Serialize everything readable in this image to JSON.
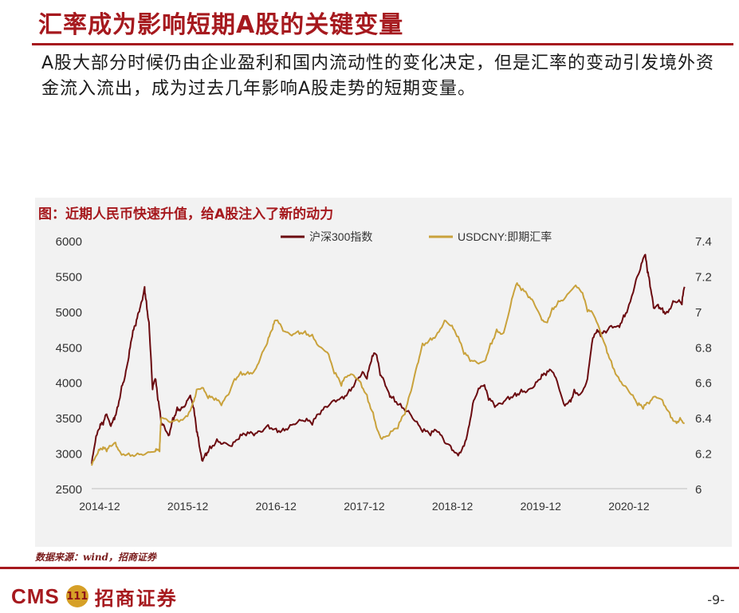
{
  "page": {
    "title": "汇率成为影响短期A股的关键变量",
    "intro": "A股大部分时候仍由企业盈利和国内流动性的变化决定，但是汇率的变动引发境外资金流入流出，成为过去几年影响A股走势的短期变量。",
    "source": "数据来源：wind，招商证券",
    "page_number": "-9-"
  },
  "logo": {
    "cms_text": "CMS",
    "badge_text": "111",
    "cn_text": "招商证券"
  },
  "colors": {
    "brand_red": "#a6191e",
    "series_csi300": "#6b0b10",
    "series_usdcny": "#c9a23c",
    "chart_bg": "#f2f2f2"
  },
  "chart_data": {
    "type": "line",
    "title": "图：近期人民币快速升值，给A股注入了新的动力",
    "categories": [
      "2014-12",
      "2015-12",
      "2016-12",
      "2017-12",
      "2018-12",
      "2019-12",
      "2020-12"
    ],
    "x_range": [
      2014.83,
      2021.58
    ],
    "y_left": {
      "range": [
        2500,
        6000
      ],
      "ticks": [
        2500,
        3000,
        3500,
        4000,
        4500,
        5000,
        5500,
        6000
      ]
    },
    "y_right": {
      "range": [
        6,
        7.4
      ],
      "ticks": [
        "6",
        "6.2",
        "6.4",
        "6.6",
        "6.8",
        "7",
        "7.2",
        "7.4"
      ]
    },
    "legend_position": "top-center",
    "series": [
      {
        "name": "沪深300指数",
        "axis": "left",
        "points": [
          [
            2014.83,
            2850
          ],
          [
            2014.87,
            3150
          ],
          [
            2014.92,
            3350
          ],
          [
            2014.96,
            3400
          ],
          [
            2015.0,
            3550
          ],
          [
            2015.04,
            3400
          ],
          [
            2015.08,
            3500
          ],
          [
            2015.12,
            3650
          ],
          [
            2015.17,
            3950
          ],
          [
            2015.21,
            4100
          ],
          [
            2015.25,
            4350
          ],
          [
            2015.29,
            4650
          ],
          [
            2015.33,
            4800
          ],
          [
            2015.37,
            5000
          ],
          [
            2015.4,
            5150
          ],
          [
            2015.43,
            5350
          ],
          [
            2015.45,
            5150
          ],
          [
            2015.48,
            4850
          ],
          [
            2015.5,
            4400
          ],
          [
            2015.52,
            3900
          ],
          [
            2015.55,
            4050
          ],
          [
            2015.58,
            3750
          ],
          [
            2015.62,
            3400
          ],
          [
            2015.66,
            3350
          ],
          [
            2015.7,
            3250
          ],
          [
            2015.75,
            3500
          ],
          [
            2015.8,
            3650
          ],
          [
            2015.85,
            3650
          ],
          [
            2015.9,
            3700
          ],
          [
            2015.94,
            3800
          ],
          [
            2015.98,
            3650
          ],
          [
            2016.02,
            3300
          ],
          [
            2016.05,
            3100
          ],
          [
            2016.08,
            2900
          ],
          [
            2016.12,
            3000
          ],
          [
            2016.17,
            3100
          ],
          [
            2016.25,
            3200
          ],
          [
            2016.33,
            3150
          ],
          [
            2016.42,
            3100
          ],
          [
            2016.5,
            3200
          ],
          [
            2016.58,
            3250
          ],
          [
            2016.67,
            3250
          ],
          [
            2016.75,
            3300
          ],
          [
            2016.83,
            3400
          ],
          [
            2016.92,
            3350
          ],
          [
            2017.0,
            3350
          ],
          [
            2017.08,
            3400
          ],
          [
            2017.17,
            3450
          ],
          [
            2017.25,
            3450
          ],
          [
            2017.33,
            3400
          ],
          [
            2017.42,
            3550
          ],
          [
            2017.5,
            3650
          ],
          [
            2017.58,
            3750
          ],
          [
            2017.67,
            3800
          ],
          [
            2017.75,
            3900
          ],
          [
            2017.83,
            4050
          ],
          [
            2017.9,
            4150
          ],
          [
            2017.95,
            4050
          ],
          [
            2018.0,
            4300
          ],
          [
            2018.05,
            4400
          ],
          [
            2018.1,
            4100
          ],
          [
            2018.15,
            4000
          ],
          [
            2018.2,
            3850
          ],
          [
            2018.25,
            3800
          ],
          [
            2018.33,
            3700
          ],
          [
            2018.42,
            3600
          ],
          [
            2018.5,
            3450
          ],
          [
            2018.58,
            3300
          ],
          [
            2018.67,
            3250
          ],
          [
            2018.75,
            3300
          ],
          [
            2018.83,
            3150
          ],
          [
            2018.9,
            3100
          ],
          [
            2018.97,
            3000
          ],
          [
            2019.04,
            3100
          ],
          [
            2019.1,
            3350
          ],
          [
            2019.15,
            3700
          ],
          [
            2019.2,
            3850
          ],
          [
            2019.27,
            3950
          ],
          [
            2019.33,
            3750
          ],
          [
            2019.4,
            3650
          ],
          [
            2019.47,
            3700
          ],
          [
            2019.55,
            3800
          ],
          [
            2019.63,
            3850
          ],
          [
            2019.7,
            3900
          ],
          [
            2019.78,
            3900
          ],
          [
            2019.85,
            3950
          ],
          [
            2019.92,
            4050
          ],
          [
            2019.98,
            4100
          ],
          [
            2020.05,
            4150
          ],
          [
            2020.12,
            3950
          ],
          [
            2020.18,
            3700
          ],
          [
            2020.25,
            3750
          ],
          [
            2020.3,
            3900
          ],
          [
            2020.38,
            3850
          ],
          [
            2020.45,
            4050
          ],
          [
            2020.5,
            4550
          ],
          [
            2020.55,
            4700
          ],
          [
            2020.6,
            4650
          ],
          [
            2020.66,
            4700
          ],
          [
            2020.72,
            4800
          ],
          [
            2020.8,
            4800
          ],
          [
            2020.86,
            4950
          ],
          [
            2020.92,
            5100
          ],
          [
            2021.0,
            5450
          ],
          [
            2021.05,
            5600
          ],
          [
            2021.1,
            5800
          ],
          [
            2021.13,
            5550
          ],
          [
            2021.16,
            5350
          ],
          [
            2021.2,
            5050
          ],
          [
            2021.25,
            5100
          ],
          [
            2021.3,
            5050
          ],
          [
            2021.35,
            5000
          ],
          [
            2021.42,
            5150
          ],
          [
            2021.48,
            5150
          ],
          [
            2021.52,
            5100
          ],
          [
            2021.55,
            5350
          ]
        ]
      },
      {
        "name": "USDCNY:即期汇率",
        "axis": "right",
        "points": [
          [
            2014.83,
            6.13
          ],
          [
            2014.9,
            6.2
          ],
          [
            2014.95,
            6.22
          ],
          [
            2015.0,
            6.21
          ],
          [
            2015.05,
            6.24
          ],
          [
            2015.1,
            6.26
          ],
          [
            2015.15,
            6.21
          ],
          [
            2015.25,
            6.2
          ],
          [
            2015.35,
            6.2
          ],
          [
            2015.45,
            6.2
          ],
          [
            2015.55,
            6.21
          ],
          [
            2015.6,
            6.21
          ],
          [
            2015.61,
            6.33
          ],
          [
            2015.62,
            6.4
          ],
          [
            2015.7,
            6.38
          ],
          [
            2015.8,
            6.39
          ],
          [
            2015.9,
            6.41
          ],
          [
            2015.98,
            6.49
          ],
          [
            2016.02,
            6.56
          ],
          [
            2016.08,
            6.57
          ],
          [
            2016.15,
            6.51
          ],
          [
            2016.22,
            6.5
          ],
          [
            2016.3,
            6.47
          ],
          [
            2016.38,
            6.53
          ],
          [
            2016.45,
            6.62
          ],
          [
            2016.52,
            6.66
          ],
          [
            2016.6,
            6.66
          ],
          [
            2016.68,
            6.67
          ],
          [
            2016.75,
            6.75
          ],
          [
            2016.82,
            6.82
          ],
          [
            2016.88,
            6.9
          ],
          [
            2016.92,
            6.95
          ],
          [
            2017.0,
            6.89
          ],
          [
            2017.08,
            6.87
          ],
          [
            2017.17,
            6.89
          ],
          [
            2017.25,
            6.89
          ],
          [
            2017.33,
            6.87
          ],
          [
            2017.42,
            6.8
          ],
          [
            2017.5,
            6.77
          ],
          [
            2017.58,
            6.65
          ],
          [
            2017.66,
            6.58
          ],
          [
            2017.72,
            6.63
          ],
          [
            2017.8,
            6.64
          ],
          [
            2017.88,
            6.6
          ],
          [
            2017.95,
            6.53
          ],
          [
            2018.02,
            6.43
          ],
          [
            2018.08,
            6.32
          ],
          [
            2018.12,
            6.28
          ],
          [
            2018.2,
            6.3
          ],
          [
            2018.3,
            6.34
          ],
          [
            2018.38,
            6.42
          ],
          [
            2018.45,
            6.55
          ],
          [
            2018.52,
            6.7
          ],
          [
            2018.58,
            6.82
          ],
          [
            2018.67,
            6.85
          ],
          [
            2018.75,
            6.88
          ],
          [
            2018.83,
            6.95
          ],
          [
            2018.9,
            6.92
          ],
          [
            2018.97,
            6.86
          ],
          [
            2019.05,
            6.76
          ],
          [
            2019.12,
            6.72
          ],
          [
            2019.2,
            6.71
          ],
          [
            2019.28,
            6.72
          ],
          [
            2019.35,
            6.82
          ],
          [
            2019.42,
            6.9
          ],
          [
            2019.5,
            6.88
          ],
          [
            2019.58,
            7.04
          ],
          [
            2019.64,
            7.15
          ],
          [
            2019.7,
            7.12
          ],
          [
            2019.78,
            7.08
          ],
          [
            2019.85,
            7.04
          ],
          [
            2019.92,
            6.97
          ],
          [
            2019.98,
            6.94
          ],
          [
            2020.05,
            7.02
          ],
          [
            2020.12,
            7.06
          ],
          [
            2020.2,
            7.08
          ],
          [
            2020.3,
            7.14
          ],
          [
            2020.38,
            7.11
          ],
          [
            2020.45,
            7.0
          ],
          [
            2020.52,
            6.98
          ],
          [
            2020.6,
            6.88
          ],
          [
            2020.66,
            6.8
          ],
          [
            2020.72,
            6.72
          ],
          [
            2020.8,
            6.63
          ],
          [
            2020.88,
            6.58
          ],
          [
            2020.95,
            6.53
          ],
          [
            2021.02,
            6.47
          ],
          [
            2021.08,
            6.45
          ],
          [
            2021.15,
            6.48
          ],
          [
            2021.22,
            6.52
          ],
          [
            2021.3,
            6.5
          ],
          [
            2021.38,
            6.43
          ],
          [
            2021.45,
            6.38
          ],
          [
            2021.5,
            6.4
          ],
          [
            2021.55,
            6.37
          ]
        ]
      }
    ]
  }
}
